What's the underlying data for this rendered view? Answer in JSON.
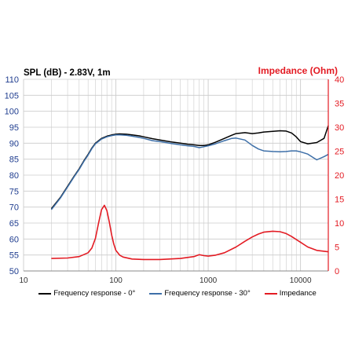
{
  "chart_data": {
    "type": "line",
    "title_left": "SPL (dB) - 2.83V, 1m",
    "title_right": "Impedance (Ohm)",
    "xscale": "log",
    "xlim": [
      10,
      20000
    ],
    "x_ticks": [
      10,
      100,
      1000,
      10000
    ],
    "x_tick_labels": [
      "10",
      "100",
      "1000",
      "10000"
    ],
    "ylim": [
      50,
      110
    ],
    "y_ticks": [
      50,
      55,
      60,
      65,
      70,
      75,
      80,
      85,
      90,
      95,
      100,
      105,
      110
    ],
    "y_tick_labels": [
      "50",
      "55",
      "60",
      "65",
      "70",
      "75",
      "80",
      "85",
      "90",
      "95",
      "100",
      "105",
      "110"
    ],
    "y2lim": [
      0,
      40
    ],
    "y2_ticks": [
      0,
      5,
      10,
      15,
      20,
      25,
      30,
      35,
      40
    ],
    "y2_tick_labels": [
      "0",
      "5",
      "10",
      "15",
      "20",
      "25",
      "30",
      "35",
      "40"
    ],
    "grid": true,
    "legend_position": "bottom",
    "colors": {
      "left_axis": "#1f3d8f",
      "right_axis": "#e31b23",
      "grid": "#cccccc",
      "series0": "#000000",
      "series30": "#3d6fa8",
      "impedance": "#e31b23"
    },
    "series": [
      {
        "name": "Frequency response - 0°",
        "axis": "left",
        "color": "#000000",
        "x": [
          20,
          25,
          30,
          35,
          40,
          45,
          50,
          55,
          60,
          70,
          80,
          90,
          100,
          110,
          130,
          150,
          180,
          200,
          250,
          300,
          400,
          500,
          600,
          700,
          800,
          900,
          1000,
          1200,
          1500,
          1800,
          2000,
          2500,
          3000,
          3500,
          4000,
          5000,
          6000,
          7000,
          8000,
          9000,
          10000,
          12000,
          15000,
          18000,
          20000
        ],
        "y": [
          69.5,
          73,
          76.5,
          79.5,
          82,
          84.5,
          86.5,
          88.5,
          90,
          91.5,
          92.2,
          92.6,
          92.8,
          92.9,
          92.8,
          92.6,
          92.3,
          92,
          91.4,
          91,
          90.4,
          90,
          89.7,
          89.5,
          89.3,
          89.3,
          89.5,
          90.3,
          91.5,
          92.5,
          93,
          93.3,
          93,
          93.2,
          93.5,
          93.7,
          93.9,
          93.8,
          93.2,
          92,
          90.5,
          89.8,
          90.2,
          91.5,
          95.5
        ]
      },
      {
        "name": "Frequency response - 30°",
        "axis": "left",
        "color": "#3d6fa8",
        "x": [
          20,
          25,
          30,
          35,
          40,
          45,
          50,
          55,
          60,
          70,
          80,
          90,
          100,
          110,
          130,
          150,
          180,
          200,
          250,
          300,
          400,
          500,
          600,
          700,
          800,
          900,
          1000,
          1200,
          1500,
          1800,
          2000,
          2500,
          3000,
          3500,
          4000,
          5000,
          6000,
          7000,
          8000,
          9000,
          10000,
          12000,
          15000,
          18000,
          20000
        ],
        "y": [
          69.2,
          72.8,
          76.3,
          79.3,
          81.8,
          84.3,
          86.3,
          88.3,
          89.8,
          91.3,
          92,
          92.4,
          92.6,
          92.6,
          92.5,
          92.2,
          91.8,
          91.5,
          90.8,
          90.5,
          89.9,
          89.5,
          89.2,
          89,
          88.6,
          88.9,
          89.2,
          89.8,
          90.8,
          91.5,
          91.6,
          91,
          89.3,
          88.2,
          87.6,
          87.4,
          87.3,
          87.4,
          87.6,
          87.6,
          87.3,
          86.6,
          84.8,
          85.8,
          86.5
        ]
      },
      {
        "name": "Impedance",
        "axis": "right",
        "color": "#e31b23",
        "x": [
          20,
          30,
          40,
          50,
          55,
          60,
          65,
          70,
          75,
          80,
          85,
          90,
          95,
          100,
          110,
          120,
          150,
          200,
          300,
          500,
          700,
          800,
          900,
          1000,
          1200,
          1500,
          2000,
          2500,
          3000,
          3500,
          4000,
          5000,
          6000,
          7000,
          8000,
          10000,
          12000,
          15000,
          20000
        ],
        "y": [
          2.6,
          2.7,
          3.0,
          3.8,
          4.8,
          6.8,
          10.0,
          12.8,
          13.7,
          12.6,
          10.2,
          7.5,
          5.6,
          4.3,
          3.3,
          2.9,
          2.5,
          2.4,
          2.4,
          2.6,
          3.0,
          3.4,
          3.2,
          3.1,
          3.3,
          3.8,
          5.0,
          6.2,
          7.1,
          7.7,
          8.1,
          8.3,
          8.2,
          7.8,
          7.2,
          6.0,
          5.0,
          4.3,
          4.0
        ]
      }
    ]
  }
}
